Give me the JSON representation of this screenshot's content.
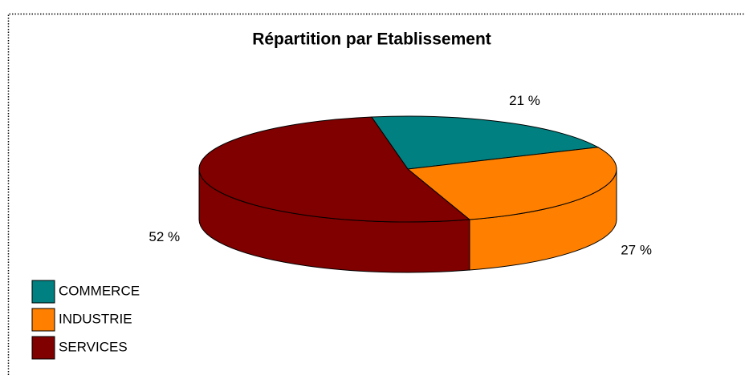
{
  "chart_data": {
    "type": "pie",
    "title": "Répartition par Etablissement",
    "categories": [
      "COMMERCE",
      "INDUSTRIE",
      "SERVICES"
    ],
    "values": [
      21,
      27,
      52
    ],
    "value_labels": [
      "21 %",
      "27 %",
      "52 %"
    ],
    "colors": [
      "#008080",
      "#ff8000",
      "#800000"
    ],
    "legend": "bottom-left"
  }
}
